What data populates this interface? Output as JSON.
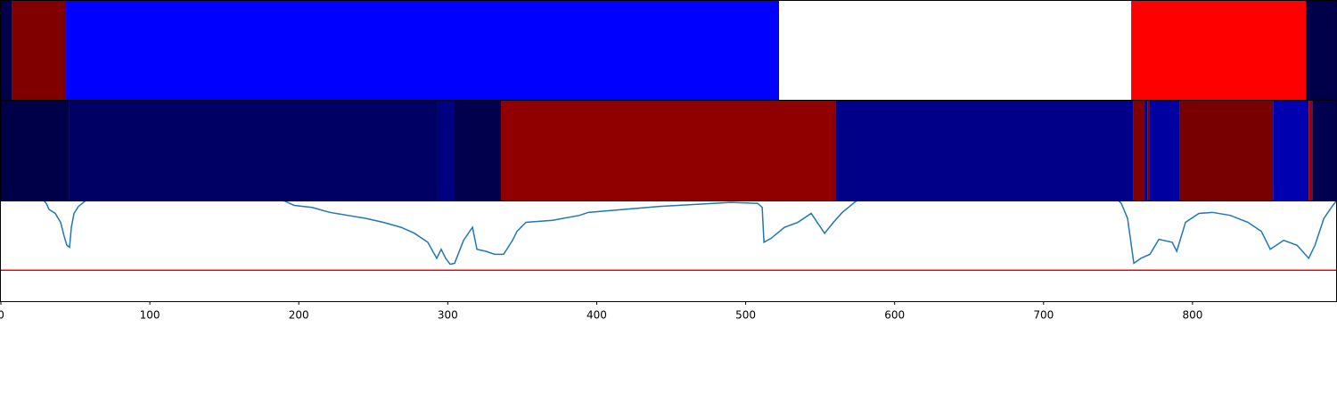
{
  "chart_data": [
    {
      "type": "segments",
      "xlim": [
        0,
        896.4
      ],
      "segments": [
        {
          "start": 0,
          "end": 7.2,
          "color": "#00004a"
        },
        {
          "start": 7.2,
          "end": 43.7,
          "color": "#800000"
        },
        {
          "start": 43.7,
          "end": 522.4,
          "color": "#0000ff"
        },
        {
          "start": 522.4,
          "end": 758.8,
          "color": "#ffffff"
        },
        {
          "start": 758.8,
          "end": 876.1,
          "color": "#ff0000"
        },
        {
          "start": 876.1,
          "end": 896.4,
          "color": "#00004a"
        }
      ]
    },
    {
      "type": "segments",
      "xlim": [
        0,
        896.4
      ],
      "segments": [
        {
          "start": 0,
          "end": 45.5,
          "color": "#000048"
        },
        {
          "start": 45.5,
          "end": 293.2,
          "color": "#000064"
        },
        {
          "start": 293.2,
          "end": 304,
          "color": "#000080"
        },
        {
          "start": 304,
          "end": 335.7,
          "color": "#00004c"
        },
        {
          "start": 335.7,
          "end": 560.2,
          "color": "#900000"
        },
        {
          "start": 560.2,
          "end": 760,
          "color": "#000088"
        },
        {
          "start": 760,
          "end": 767.8,
          "color": "#800000"
        },
        {
          "start": 767.8,
          "end": 769.6,
          "color": "#000088"
        },
        {
          "start": 769.6,
          "end": 770.8,
          "color": "#800000"
        },
        {
          "start": 770.8,
          "end": 791.1,
          "color": "#0000a0"
        },
        {
          "start": 791.1,
          "end": 854,
          "color": "#780000"
        },
        {
          "start": 854,
          "end": 878,
          "color": "#0000b0"
        },
        {
          "start": 878,
          "end": 880.4,
          "color": "#a00000"
        },
        {
          "start": 880.4,
          "end": 896.4,
          "color": "#000050"
        }
      ]
    },
    {
      "type": "line",
      "xlim": [
        0,
        896.4
      ],
      "ylim": [
        0,
        1
      ],
      "xticks": [
        0,
        100,
        200,
        300,
        400,
        500,
        600,
        700,
        800
      ],
      "hline": 0.31,
      "hline_color": "#ff0000",
      "color": "#1f77b4",
      "x": [
        0,
        28.1,
        30.5,
        32.3,
        36.5,
        40.1,
        42.5,
        44.3,
        46.1,
        47.3,
        49.1,
        52.1,
        56.3,
        59.2,
        184.9,
        190.9,
        196.9,
        208.9,
        220.8,
        232.8,
        244.8,
        256.7,
        268.7,
        277.7,
        286.6,
        292.6,
        295.6,
        298.6,
        301.6,
        304.6,
        310.6,
        316.6,
        319.6,
        325.6,
        331.5,
        337.5,
        343.5,
        346.5,
        352.5,
        370.4,
        388.4,
        394.4,
        418.3,
        442.3,
        466.2,
        490.1,
        508.1,
        511.1,
        512.3,
        517.1,
        526.0,
        535.0,
        544.0,
        553.0,
        558.9,
        564.9,
        573.9,
        579.9,
        747.5,
        752.2,
        756.4,
        760.6,
        765.4,
        771.4,
        777.4,
        786.4,
        789.4,
        795.3,
        804.3,
        813.3,
        825.3,
        837.2,
        846.2,
        852.2,
        861.2,
        870.2,
        878.0,
        882.2,
        888.2,
        894.2,
        896.4
      ],
      "values": [
        1.05,
        1.02,
        0.98,
        0.92,
        0.88,
        0.79,
        0.65,
        0.56,
        0.54,
        0.74,
        0.88,
        0.95,
        1.0,
        1.05,
        1.05,
        1.0,
        0.96,
        0.94,
        0.89,
        0.86,
        0.83,
        0.79,
        0.74,
        0.68,
        0.59,
        0.43,
        0.52,
        0.43,
        0.37,
        0.38,
        0.61,
        0.74,
        0.52,
        0.5,
        0.47,
        0.47,
        0.61,
        0.7,
        0.79,
        0.81,
        0.86,
        0.89,
        0.92,
        0.95,
        0.97,
        0.99,
        0.98,
        0.94,
        0.59,
        0.63,
        0.74,
        0.79,
        0.88,
        0.68,
        0.79,
        0.89,
        1.0,
        1.05,
        1.05,
        0.98,
        0.83,
        0.38,
        0.43,
        0.47,
        0.62,
        0.59,
        0.5,
        0.79,
        0.88,
        0.89,
        0.86,
        0.79,
        0.7,
        0.52,
        0.61,
        0.56,
        0.43,
        0.56,
        0.83,
        0.96,
        1.0
      ]
    }
  ]
}
